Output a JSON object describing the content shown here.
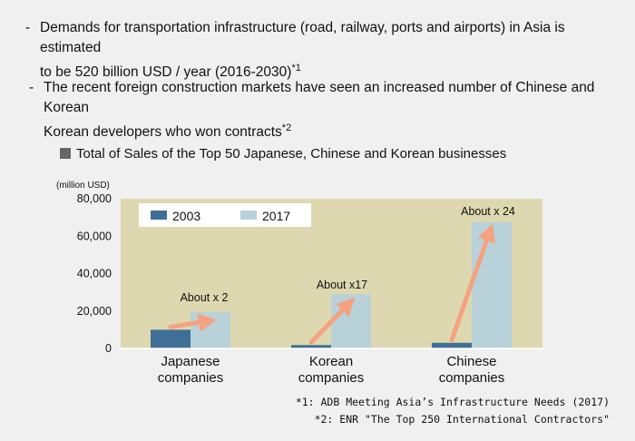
{
  "bullets": [
    {
      "dash": "-",
      "line1": "Demands for transportation infrastructure (road, railway, ports and airports) in Asia is estimated",
      "line2": "to be 520 billion USD / year (2016-2030)",
      "note_ref": "*1"
    },
    {
      "dash": "-",
      "line1": "The recent foreign construction markets have seen an increased number of Chinese and Korean",
      "line2": "Korean developers who won contracts",
      "note_ref": "*2"
    }
  ],
  "chart_data": {
    "type": "bar",
    "title": "Total of Sales of the Top 50 Japanese, Chinese and Korean businesses",
    "ylabel": "(million USD)",
    "ylim": [
      0,
      80000
    ],
    "yticks": [
      "0",
      "20,000",
      "40,000",
      "60,000",
      "80,000"
    ],
    "categories": [
      [
        "Japanese",
        "companies"
      ],
      [
        "Korean",
        "companies"
      ],
      [
        "Chinese",
        "companies"
      ]
    ],
    "series": [
      {
        "name": "2003",
        "values": [
          10000,
          1800,
          3000
        ]
      },
      {
        "name": "2017",
        "values": [
          19500,
          29000,
          67500
        ]
      }
    ],
    "annotations": [
      "About  x 2",
      "About x17",
      "About x 24"
    ],
    "colors": {
      "plot_bg": "#ded8b0",
      "series_2003": "#3f6f96",
      "series_2017": "#b9d1d9",
      "arrow": "#f4a27f"
    },
    "legend_placement": "top-left inside plot"
  },
  "footnotes": [
    "*1: ADB Meeting Asia’s Infrastructure Needs (2017)",
    "*2: ENR \"The Top 250 International Contractors\""
  ]
}
